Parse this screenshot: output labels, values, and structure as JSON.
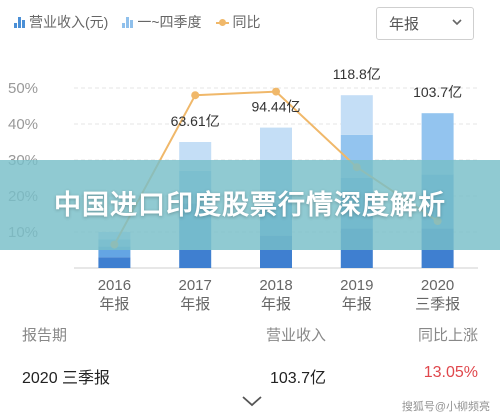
{
  "legend": {
    "revenue_label": "营业收入(元)",
    "quarter_label": "一~四季度",
    "yoy_label": "同比"
  },
  "period_select": {
    "value": "年报"
  },
  "chart_data": {
    "type": "bar",
    "categories": [
      {
        "line1": "2016",
        "line2": "年报"
      },
      {
        "line1": "2017",
        "line2": "年报"
      },
      {
        "line1": "2018",
        "line2": "年报"
      },
      {
        "line1": "2019",
        "line2": "年报"
      },
      {
        "line1": "2020",
        "line2": "三季报"
      }
    ],
    "series": [
      {
        "name": "营业收入(元)",
        "values": [
          null,
          63.61,
          94.44,
          118.8,
          103.7
        ],
        "labels": [
          "",
          "63.61亿",
          "94.44亿",
          "118.8亿",
          "103.7亿"
        ]
      },
      {
        "name": "同比",
        "values": [
          6.5,
          48,
          49,
          28,
          13.05
        ]
      }
    ],
    "bar_heights_pct": [
      10,
      35,
      39,
      48,
      43
    ],
    "quarter_segments_pct": [
      [
        3,
        6,
        8,
        10
      ],
      [
        5,
        18,
        27,
        35
      ],
      [
        9,
        18,
        30,
        39
      ],
      [
        11,
        25,
        37,
        48
      ],
      [
        11,
        26,
        43,
        43
      ]
    ],
    "y_ticks": [
      "10%",
      "20%",
      "30%",
      "40%",
      "50%"
    ],
    "y_range": [
      0,
      55
    ],
    "grid": true,
    "colors": {
      "q1": "#3f7fd0",
      "q2": "#64a5e4",
      "q3": "#93c4ef",
      "q4": "#c4def6",
      "line": "#f0b86a",
      "grid": "#e4e4e4"
    }
  },
  "banner": {
    "title": "中国进口印度股票行情深度解析"
  },
  "table": {
    "headers": [
      "报告期",
      "营业收入",
      "同比上涨"
    ],
    "row": {
      "period": "2020 三季报",
      "revenue": "103.7亿",
      "growth": "13.05%"
    }
  },
  "watermark": {
    "text": "搜狐号@小柳频亮"
  }
}
